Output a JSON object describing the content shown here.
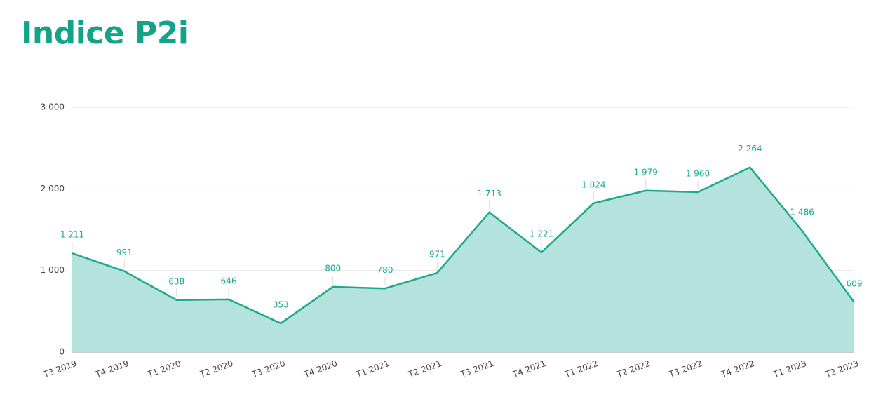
{
  "title": "Indice P2i",
  "chart_data": {
    "type": "area",
    "categories": [
      "T3 2019",
      "T4 2019",
      "T1 2020",
      "T2 2020",
      "T3 2020",
      "T4 2020",
      "T1 2021",
      "T2 2021",
      "T3 2021",
      "T4 2021",
      "T1 2022",
      "T2 2022",
      "T3 2022",
      "T4 2022",
      "T1 2023",
      "T2 2023"
    ],
    "values": [
      1211,
      991,
      638,
      646,
      353,
      800,
      780,
      971,
      1713,
      1221,
      1824,
      1979,
      1960,
      2264,
      1486,
      609
    ],
    "value_labels": [
      "1 211",
      "991",
      "638",
      "646",
      "353",
      "800",
      "780",
      "971",
      "1 713",
      "1 221",
      "1 824",
      "1 979",
      "1 960",
      "2 264",
      "1 486",
      "609"
    ],
    "color": "#1aa88f",
    "fill": "#b3e3dc",
    "ylim": [
      0,
      3000
    ],
    "yticks": [
      0,
      {
        "value": 1000,
        "label": "1 000"
      },
      {
        "value": 2000,
        "label": "2 000"
      },
      {
        "value": 3000,
        "label": "3 000"
      }
    ],
    "grid": true
  }
}
